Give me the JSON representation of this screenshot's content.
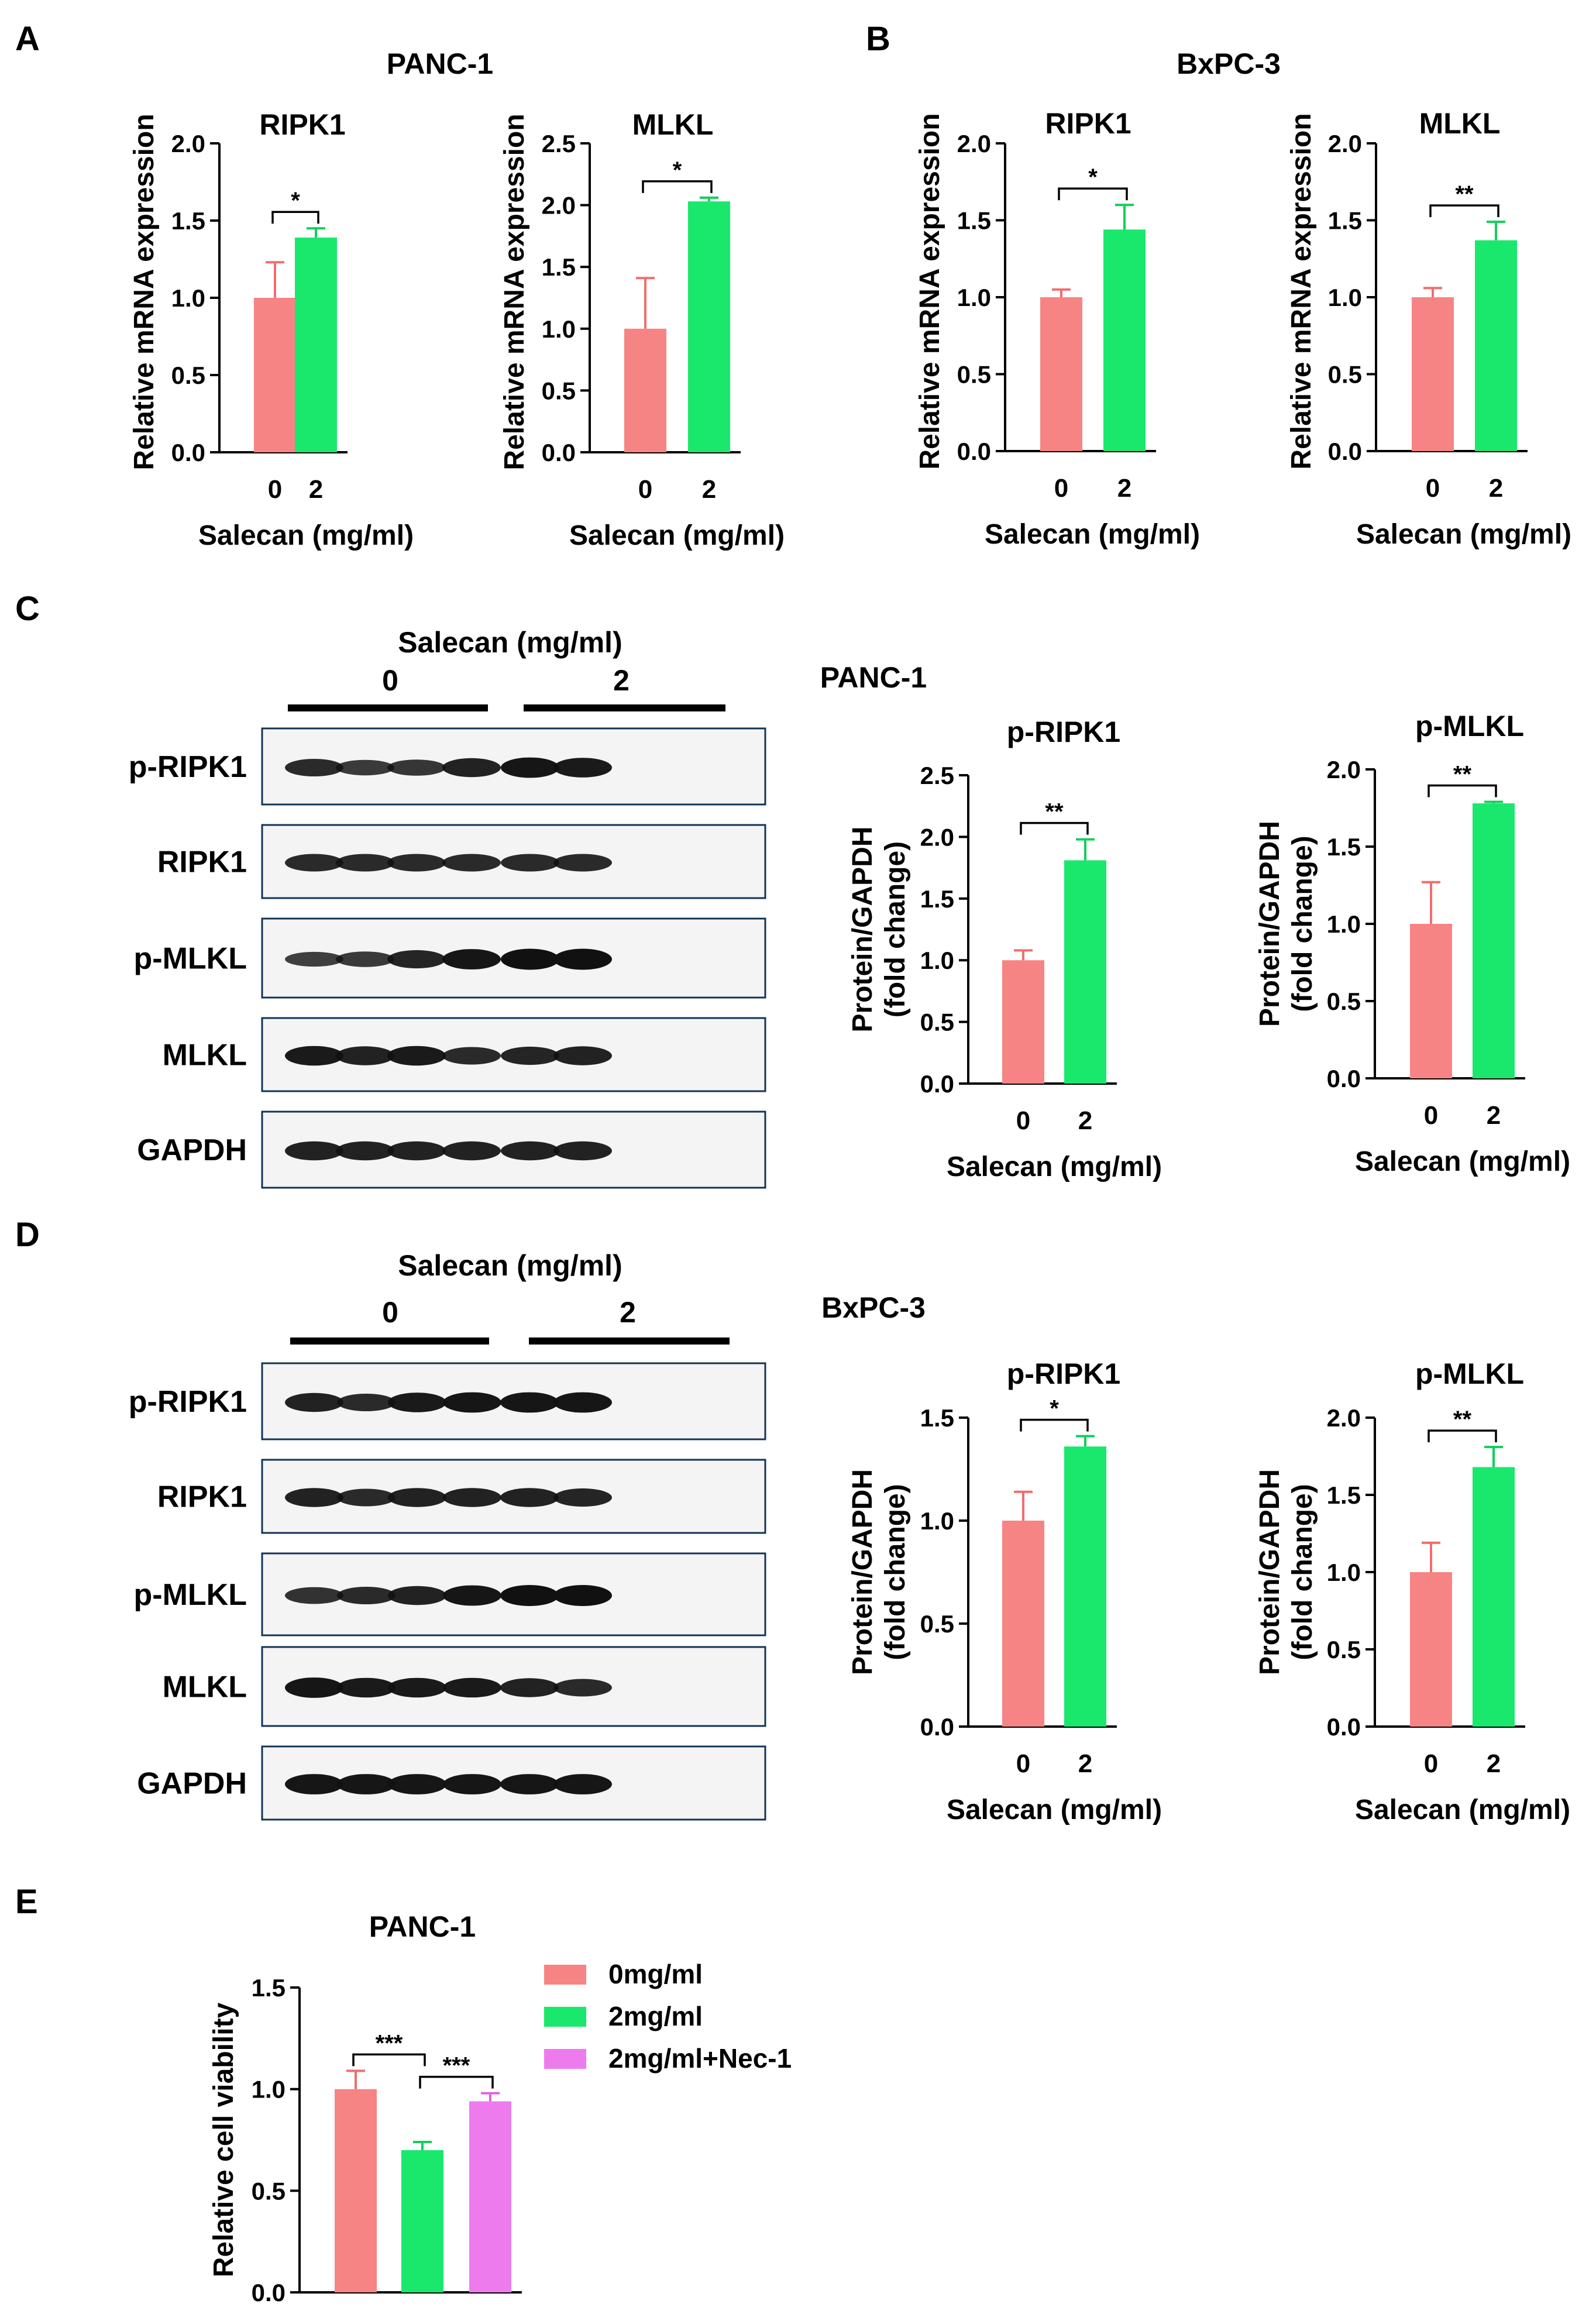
{
  "colors": {
    "red": "#f78484",
    "green": "#19e86d",
    "violet": "#ee7bee",
    "redEdge": "#f26d6d",
    "greenEdge": "#10cf5b",
    "violetEdge": "#dd62dd"
  },
  "panel_letters": [
    "A",
    "B",
    "C",
    "D",
    "E"
  ],
  "cell_lines": {
    "a": "PANC-1",
    "b": "BxPC-3",
    "c": "PANC-1",
    "d": "BxPC-3",
    "e": "PANC-1"
  },
  "axis_text": {
    "mrna_ylabel": "Relative mRNA expression",
    "protein_ylabel_1": "Protein/GAPDH",
    "protein_ylabel_2": "(fold change)",
    "viability_ylabel": "Relative cell viability",
    "xlabel": "Salecan (mg/ml)"
  },
  "blot": {
    "treatment_label": "Salecan (mg/ml)",
    "dose_labels": [
      "0",
      "2"
    ],
    "rows": [
      "p-RIPK1",
      "RIPK1",
      "p-MLKL",
      "MLKL",
      "GAPDH"
    ]
  },
  "legend_e": [
    "0mg/ml",
    "2mg/ml",
    "2mg/ml+Nec-1"
  ],
  "chart_data": [
    {
      "id": "a1",
      "type": "bar",
      "title": "RIPK1",
      "categories": [
        "0",
        "2"
      ],
      "values": [
        1.0,
        1.39
      ],
      "errors": [
        0.23,
        0.06
      ],
      "ylim": [
        0,
        2.0
      ],
      "yticks": [
        "0.0",
        "0.5",
        "1.0",
        "1.5",
        "2.0"
      ],
      "ylabel": "Relative mRNA expression",
      "xlabel": "Salecan (mg/ml)",
      "significance": [
        {
          "from": 0,
          "to": 1,
          "label": "*"
        }
      ]
    },
    {
      "id": "a2",
      "type": "bar",
      "title": "MLKL",
      "categories": [
        "0",
        "2"
      ],
      "values": [
        1.0,
        2.03
      ],
      "errors": [
        0.41,
        0.03
      ],
      "ylim": [
        0,
        2.5
      ],
      "yticks": [
        "0.0",
        "0.5",
        "1.0",
        "1.5",
        "2.0",
        "2.5"
      ],
      "ylabel": "Relative mRNA expression",
      "xlabel": "Salecan (mg/ml)",
      "significance": [
        {
          "from": 0,
          "to": 1,
          "label": "*"
        }
      ]
    },
    {
      "id": "b1",
      "type": "bar",
      "title": "RIPK1",
      "categories": [
        "0",
        "2"
      ],
      "values": [
        1.0,
        1.44
      ],
      "errors": [
        0.05,
        0.16
      ],
      "ylim": [
        0,
        2.0
      ],
      "yticks": [
        "0.0",
        "0.5",
        "1.0",
        "1.5",
        "2.0"
      ],
      "ylabel": "Relative mRNA expression",
      "xlabel": "Salecan (mg/ml)",
      "significance": [
        {
          "from": 0,
          "to": 1,
          "label": "*"
        }
      ]
    },
    {
      "id": "b2",
      "type": "bar",
      "title": "MLKL",
      "categories": [
        "0",
        "2"
      ],
      "values": [
        1.0,
        1.37
      ],
      "errors": [
        0.06,
        0.12
      ],
      "ylim": [
        0,
        2.0
      ],
      "yticks": [
        "0.0",
        "0.5",
        "1.0",
        "1.5",
        "2.0"
      ],
      "ylabel": "Relative mRNA expression",
      "xlabel": "Salecan (mg/ml)",
      "significance": [
        {
          "from": 0,
          "to": 1,
          "label": "**"
        }
      ]
    },
    {
      "id": "c1",
      "type": "bar",
      "title": "p-RIPK1",
      "categories": [
        "0",
        "2"
      ],
      "values": [
        1.0,
        1.81
      ],
      "errors": [
        0.08,
        0.17
      ],
      "ylim": [
        0,
        2.5
      ],
      "yticks": [
        "0.0",
        "0.5",
        "1.0",
        "1.5",
        "2.0",
        "2.5"
      ],
      "ylabel": "Protein/GAPDH (fold change)",
      "xlabel": "Salecan (mg/ml)",
      "significance": [
        {
          "from": 0,
          "to": 1,
          "label": "**"
        }
      ]
    },
    {
      "id": "c2",
      "type": "bar",
      "title": "p-MLKL",
      "categories": [
        "0",
        "2"
      ],
      "values": [
        1.0,
        1.78
      ],
      "errors": [
        0.27,
        0.01
      ],
      "ylim": [
        0,
        2.0
      ],
      "yticks": [
        "0.0",
        "0.5",
        "1.0",
        "1.5",
        "2.0"
      ],
      "ylabel": "Protein/GAPDH (fold change)",
      "xlabel": "Salecan (mg/ml)",
      "significance": [
        {
          "from": 0,
          "to": 1,
          "label": "**"
        }
      ]
    },
    {
      "id": "d1",
      "type": "bar",
      "title": "p-RIPK1",
      "categories": [
        "0",
        "2"
      ],
      "values": [
        1.0,
        1.36
      ],
      "errors": [
        0.14,
        0.05
      ],
      "ylim": [
        0,
        1.5
      ],
      "yticks": [
        "0.0",
        "0.5",
        "1.0",
        "1.5"
      ],
      "ylabel": "Protein/GAPDH (fold change)",
      "xlabel": "Salecan (mg/ml)",
      "significance": [
        {
          "from": 0,
          "to": 1,
          "label": "*"
        }
      ]
    },
    {
      "id": "d2",
      "type": "bar",
      "title": "p-MLKL",
      "categories": [
        "0",
        "2"
      ],
      "values": [
        1.0,
        1.68
      ],
      "errors": [
        0.19,
        0.13
      ],
      "ylim": [
        0,
        2.0
      ],
      "yticks": [
        "0.0",
        "0.5",
        "1.0",
        "1.5",
        "2.0"
      ],
      "ylabel": "Protein/GAPDH (fold change)",
      "xlabel": "Salecan (mg/ml)",
      "significance": [
        {
          "from": 0,
          "to": 1,
          "label": "**"
        }
      ]
    },
    {
      "id": "e",
      "type": "bar",
      "title": "PANC-1",
      "series": [
        {
          "name": "0mg/ml",
          "values": [
            1.0
          ],
          "errors": [
            0.09
          ]
        },
        {
          "name": "2mg/ml",
          "values": [
            0.7
          ],
          "errors": [
            0.04
          ]
        },
        {
          "name": "2mg/ml+Nec-1",
          "values": [
            0.94
          ],
          "errors": [
            0.04
          ]
        }
      ],
      "ylim": [
        0,
        1.5
      ],
      "yticks": [
        "0.0",
        "0.5",
        "1.0",
        "1.5"
      ],
      "ylabel": "Relative cell viability",
      "legend": "right",
      "significance": [
        {
          "from": 0,
          "to": 1,
          "label": "***"
        },
        {
          "from": 1,
          "to": 2,
          "label": "***"
        }
      ]
    }
  ]
}
